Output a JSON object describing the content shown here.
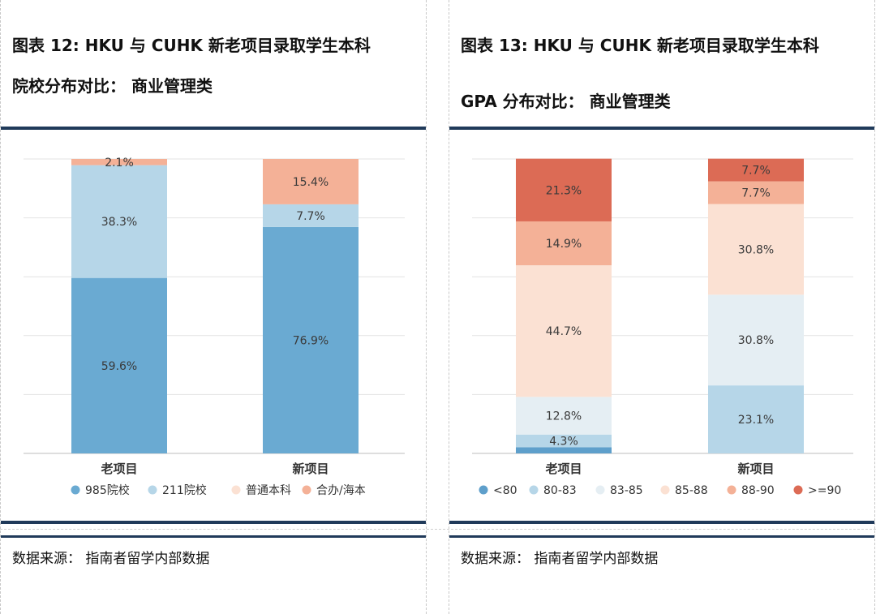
{
  "left": {
    "title_line1": "图表 12: HKU 与 CUHK 新老项目录取学生本科",
    "title_line2": "院校分布对比：  商业管理类",
    "source": "数据来源：  指南者留学内部数据"
  },
  "right": {
    "title_line1": "图表 13: HKU 与 CUHK 新老项目录取学生本科",
    "title_line2": "GPA 分布对比：  商业管理类",
    "source": "数据来源：  指南者留学内部数据"
  },
  "chart_data": [
    {
      "type": "bar",
      "stacked": true,
      "categories": [
        "老项目",
        "新项目"
      ],
      "ylim": [
        0,
        100
      ],
      "grid": true,
      "legend_position": "bottom",
      "series": [
        {
          "name": "985院校",
          "values": [
            59.6,
            76.9
          ],
          "labels": [
            "59.6%",
            "76.9%"
          ],
          "color": "#6aaad2"
        },
        {
          "name": "211院校",
          "values": [
            38.3,
            7.7
          ],
          "labels": [
            "38.3%",
            "7.7%"
          ],
          "color": "#b6d6e8"
        },
        {
          "name": "普通本科",
          "values": [
            0,
            0
          ],
          "labels": [
            "",
            ""
          ],
          "color": "#fbe1d3"
        },
        {
          "name": "合办/海本",
          "values": [
            2.1,
            15.4
          ],
          "labels": [
            "2.1%",
            "15.4%"
          ],
          "color": "#f4b197"
        }
      ]
    },
    {
      "type": "bar",
      "stacked": true,
      "categories": [
        "老项目",
        "新项目"
      ],
      "ylim": [
        0,
        100
      ],
      "grid": true,
      "legend_position": "bottom",
      "series": [
        {
          "name": "<80",
          "values": [
            2.1,
            0
          ],
          "labels": [
            "",
            ""
          ],
          "color": "#5e9fcb"
        },
        {
          "name": "80-83",
          "values": [
            4.3,
            23.1
          ],
          "labels": [
            "4.3%",
            "23.1%"
          ],
          "color": "#b6d6e8"
        },
        {
          "name": "83-85",
          "values": [
            12.8,
            30.8
          ],
          "labels": [
            "12.8%",
            "30.8%"
          ],
          "color": "#e5eef3"
        },
        {
          "name": "85-88",
          "values": [
            44.7,
            30.8
          ],
          "labels": [
            "44.7%",
            "30.8%"
          ],
          "color": "#fbe1d3"
        },
        {
          "name": "88-90",
          "values": [
            14.9,
            7.7
          ],
          "labels": [
            "14.9%",
            "7.7%"
          ],
          "color": "#f4b197"
        },
        {
          "name": ">=90",
          "values": [
            21.3,
            7.7
          ],
          "labels": [
            "21.3%",
            "7.7%"
          ],
          "color": "#dc6b55"
        }
      ]
    }
  ]
}
